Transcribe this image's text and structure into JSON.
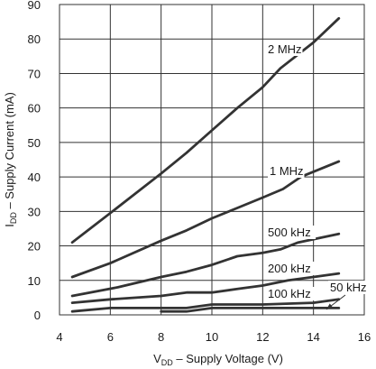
{
  "chart_data": {
    "type": "line",
    "xlabel": {
      "prefix": "V",
      "sub": "DD",
      "rest": " – Supply Voltage (V)"
    },
    "ylabel": {
      "prefix": "I",
      "sub": "DD",
      "rest": " – Supply Current (mA)"
    },
    "xlim": [
      4,
      16
    ],
    "ylim": [
      0,
      90
    ],
    "xticks": [
      4,
      6,
      8,
      10,
      12,
      14,
      16
    ],
    "yticks": [
      0,
      10,
      20,
      30,
      40,
      50,
      60,
      70,
      80,
      90
    ],
    "grid": true,
    "line_color": "#333333",
    "series": [
      {
        "name": "2 MHz",
        "x": [
          4.5,
          6,
          8,
          9,
          10,
          11,
          12,
          12.7,
          14,
          15
        ],
        "y": [
          21,
          29.5,
          41,
          47,
          53.5,
          60,
          66,
          71.5,
          79,
          86
        ]
      },
      {
        "name": "1 MHz",
        "x": [
          4.5,
          6,
          8,
          9,
          10,
          11,
          12,
          12.8,
          13.5,
          15
        ],
        "y": [
          11,
          15,
          21.5,
          24.5,
          28,
          31,
          34,
          36.5,
          40,
          44.5
        ]
      },
      {
        "name": "500 kHz",
        "x": [
          4.5,
          6.3,
          8,
          9,
          10,
          11,
          12,
          12.7,
          13.4,
          15
        ],
        "y": [
          5.5,
          8,
          11,
          12.5,
          14.5,
          17,
          18,
          19,
          21,
          23.5
        ]
      },
      {
        "name": "200 kHz",
        "x": [
          4.5,
          6,
          8,
          9,
          10,
          11,
          12,
          13,
          14,
          15
        ],
        "y": [
          3.5,
          4.5,
          5.5,
          6.5,
          6.5,
          7.5,
          8.5,
          10,
          11,
          12
        ]
      },
      {
        "name": "100 kHz",
        "x": [
          4.5,
          6,
          8,
          9,
          10,
          12,
          14,
          15
        ],
        "y": [
          1,
          2,
          2,
          2,
          3,
          3,
          3.5,
          4.5
        ]
      },
      {
        "name": "50 kHz",
        "x": [
          8,
          9,
          10,
          12,
          14,
          15
        ],
        "y": [
          1,
          1,
          2,
          2,
          2,
          2
        ]
      }
    ]
  }
}
